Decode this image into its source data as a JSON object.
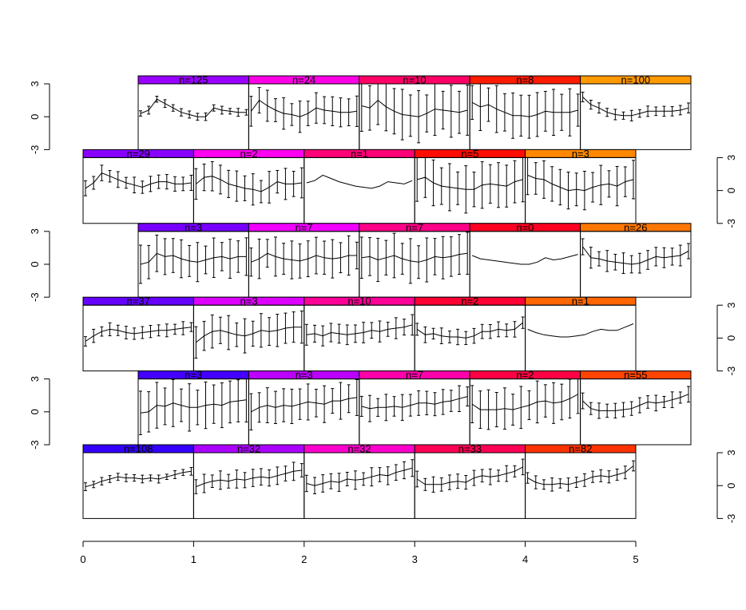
{
  "chart_data": {
    "type": "line",
    "title": "",
    "description_of_layout": "conditioning plot",
    "ylim": [
      -3,
      3
    ],
    "y_ticks": [
      "3",
      "0",
      "-3"
    ],
    "x_ticks": [
      "0",
      "1",
      "2",
      "3",
      "4",
      "5"
    ],
    "xlim": [
      0,
      5
    ],
    "rows": [
      {
        "axis": "left",
        "panels": [
          {
            "label": "n=125",
            "color": "#9900ff",
            "err": 0.3,
            "mean": [
              0.3,
              0.6,
              1.6,
              1.2,
              0.8,
              0.4,
              0.2,
              0.0,
              0.0,
              0.8,
              0.6,
              0.5,
              0.4,
              0.4
            ]
          },
          {
            "label": "n=24",
            "color": "#ff00e6",
            "err": 1.2,
            "mean": [
              0.5,
              1.5,
              1.0,
              0.6,
              0.3,
              0.2,
              0.0,
              0.3,
              0.8,
              0.6,
              0.5,
              0.4,
              0.4,
              0.5
            ]
          },
          {
            "label": "n=10",
            "color": "#ff0066",
            "err": 2.0,
            "mean": [
              1.0,
              0.8,
              1.5,
              0.9,
              0.5,
              0.2,
              0.1,
              0.0,
              0.3,
              0.7,
              0.6,
              0.5,
              0.4,
              0.6
            ]
          },
          {
            "label": "n=8",
            "color": "#ff1a00",
            "err": 1.8,
            "mean": [
              1.3,
              0.9,
              1.1,
              0.7,
              0.4,
              0.1,
              0.1,
              0.0,
              0.2,
              0.5,
              0.4,
              0.4,
              0.4,
              0.6
            ]
          },
          {
            "label": "n=100",
            "color": "#ff9900",
            "err": 0.4,
            "mean": [
              1.8,
              1.1,
              0.8,
              0.4,
              0.2,
              0.1,
              0.1,
              0.3,
              0.5,
              0.5,
              0.5,
              0.5,
              0.6,
              0.8
            ]
          }
        ]
      },
      {
        "axis": "right",
        "panels": [
          {
            "label": "n=29",
            "color": "#8800ff",
            "err": 0.6,
            "mean": [
              0.2,
              0.7,
              1.6,
              1.3,
              1.0,
              0.7,
              0.5,
              0.3,
              0.6,
              0.8,
              0.8,
              0.6,
              0.6,
              0.7
            ]
          },
          {
            "label": "n=2",
            "color": "#ff00f0",
            "err": 1.2,
            "mean": [
              0.6,
              1.2,
              1.3,
              1.0,
              0.6,
              0.4,
              0.2,
              0.1,
              -0.1,
              0.3,
              0.8,
              0.6,
              0.6,
              0.7
            ]
          },
          {
            "label": "n=1",
            "color": "#ff0077",
            "err": 0,
            "mean": [
              0.7,
              0.9,
              1.4,
              1.1,
              0.8,
              0.6,
              0.4,
              0.3,
              0.2,
              0.4,
              0.8,
              0.7,
              0.6,
              0.9
            ]
          },
          {
            "label": "n=5",
            "color": "#ff0d00",
            "err": 1.8,
            "mean": [
              1.0,
              1.2,
              0.7,
              0.4,
              0.3,
              0.2,
              0.1,
              0.1,
              0.5,
              0.6,
              0.5,
              0.4,
              0.8,
              1.0
            ]
          },
          {
            "label": "n=3",
            "color": "#ff8800",
            "err": 1.5,
            "mean": [
              1.4,
              1.1,
              1.0,
              0.6,
              0.3,
              0.0,
              0.1,
              0.0,
              0.3,
              0.5,
              0.6,
              0.4,
              0.8,
              1.0
            ]
          }
        ]
      },
      {
        "axis": "left",
        "panels": [
          {
            "label": "n=3",
            "color": "#7700ff",
            "err": 1.5,
            "mean": [
              0.0,
              0.2,
              1.0,
              0.7,
              0.8,
              0.5,
              0.3,
              0.2,
              0.4,
              0.6,
              0.7,
              0.5,
              0.7,
              0.7
            ]
          },
          {
            "label": "n=7",
            "color": "#f000ff",
            "err": 1.5,
            "mean": [
              0.2,
              0.5,
              1.0,
              0.7,
              0.5,
              0.4,
              0.3,
              0.5,
              0.8,
              0.6,
              0.5,
              0.6,
              0.8,
              0.8
            ]
          },
          {
            "label": "n=7",
            "color": "#ff0088",
            "err": 1.7,
            "mean": [
              0.6,
              0.7,
              0.4,
              0.6,
              0.8,
              0.5,
              0.3,
              0.2,
              0.4,
              0.7,
              0.6,
              0.7,
              0.9,
              1.0
            ]
          },
          {
            "label": "n=0",
            "color": "#ff0022",
            "err": 0,
            "mean": [
              0.8,
              0.5,
              0.4,
              0.3,
              0.2,
              0.1,
              0.0,
              0.0,
              0.2,
              0.6,
              0.4,
              0.5,
              0.7,
              0.9
            ]
          },
          {
            "label": "n=26",
            "color": "#ff7700",
            "err": 0.8,
            "mean": [
              1.6,
              0.6,
              0.5,
              0.3,
              0.2,
              0.1,
              0.0,
              0.1,
              0.4,
              0.7,
              0.6,
              0.7,
              0.8,
              1.2
            ]
          }
        ]
      },
      {
        "axis": "right",
        "panels": [
          {
            "label": "n=37",
            "color": "#6600ff",
            "err": 0.5,
            "mean": [
              -0.3,
              0.2,
              0.6,
              0.8,
              0.7,
              0.5,
              0.4,
              0.5,
              0.6,
              0.7,
              0.7,
              0.8,
              0.9,
              1.0
            ]
          },
          {
            "label": "n=3",
            "color": "#dd00ff",
            "err": 1.3,
            "mean": [
              -0.4,
              0.2,
              0.6,
              0.7,
              0.5,
              0.3,
              0.2,
              0.4,
              0.7,
              0.6,
              0.7,
              0.9,
              1.0,
              1.0
            ]
          },
          {
            "label": "n=10",
            "color": "#ff0099",
            "err": 0.8,
            "mean": [
              0.3,
              0.4,
              0.2,
              0.5,
              0.4,
              0.3,
              0.4,
              0.5,
              0.7,
              0.6,
              0.8,
              0.9,
              1.0,
              1.2
            ]
          },
          {
            "label": "n=2",
            "color": "#ff0033",
            "err": 0.6,
            "mean": [
              0.8,
              0.3,
              0.4,
              0.2,
              0.1,
              0.1,
              0.0,
              0.2,
              0.6,
              0.6,
              0.8,
              0.7,
              0.8,
              1.4
            ]
          },
          {
            "label": "n=1",
            "color": "#ff6600",
            "err": 0,
            "mean": [
              0.8,
              0.5,
              0.3,
              0.2,
              0.1,
              0.1,
              0.2,
              0.3,
              0.6,
              0.8,
              0.7,
              0.7,
              1.0,
              1.3
            ]
          }
        ]
      },
      {
        "axis": "left",
        "panels": [
          {
            "label": "n=3",
            "color": "#4400ff",
            "err": 1.8,
            "mean": [
              -0.1,
              0.0,
              0.6,
              0.5,
              0.8,
              0.6,
              0.4,
              0.4,
              0.6,
              0.7,
              0.6,
              0.9,
              1.0,
              1.1
            ]
          },
          {
            "label": "n=3",
            "color": "#bb00ff",
            "err": 1.4,
            "mean": [
              0.0,
              0.4,
              0.6,
              0.4,
              0.6,
              0.5,
              0.7,
              0.9,
              0.8,
              0.7,
              1.0,
              1.0,
              1.2,
              1.3
            ]
          },
          {
            "label": "n=7",
            "color": "#ff00aa",
            "err": 1.0,
            "mean": [
              0.5,
              0.3,
              0.4,
              0.4,
              0.5,
              0.4,
              0.6,
              0.8,
              0.8,
              0.7,
              0.9,
              1.0,
              1.2,
              1.4
            ]
          },
          {
            "label": "n=2",
            "color": "#ff0044",
            "err": 1.6,
            "mean": [
              0.7,
              0.2,
              0.2,
              0.2,
              0.3,
              0.2,
              0.4,
              0.6,
              0.9,
              1.0,
              0.8,
              0.9,
              1.2,
              1.6
            ]
          },
          {
            "label": "n=55",
            "color": "#ff4400",
            "err": 0.6,
            "mean": [
              1.0,
              0.3,
              0.1,
              0.1,
              0.1,
              0.2,
              0.3,
              0.6,
              0.9,
              0.8,
              0.9,
              1.1,
              1.3,
              1.6
            ]
          }
        ]
      },
      {
        "axis": "right",
        "panels": [
          {
            "label": "n=108",
            "color": "#3300ff",
            "err": 0.3,
            "mean": [
              -0.1,
              0.1,
              0.4,
              0.6,
              0.8,
              0.7,
              0.7,
              0.6,
              0.7,
              0.6,
              0.8,
              1.0,
              1.2,
              1.3
            ]
          },
          {
            "label": "n=32",
            "color": "#aa00ff",
            "err": 0.7,
            "mean": [
              -0.1,
              0.2,
              0.4,
              0.5,
              0.4,
              0.6,
              0.5,
              0.7,
              0.8,
              0.7,
              0.9,
              1.1,
              1.3,
              1.4
            ]
          },
          {
            "label": "n=32",
            "color": "#ff00cc",
            "err": 0.7,
            "mean": [
              0.2,
              0.0,
              0.2,
              0.4,
              0.3,
              0.6,
              0.5,
              0.6,
              0.8,
              1.0,
              0.9,
              1.2,
              1.4,
              1.6
            ]
          },
          {
            "label": "n=33",
            "color": "#ff0055",
            "err": 0.6,
            "mean": [
              0.6,
              0.1,
              0.1,
              0.1,
              0.3,
              0.4,
              0.3,
              0.7,
              0.9,
              0.8,
              0.9,
              1.1,
              1.3,
              1.7
            ]
          },
          {
            "label": "n=82",
            "color": "#ff3300",
            "err": 0.5,
            "mean": [
              0.7,
              0.3,
              0.1,
              0.1,
              0.2,
              0.1,
              0.3,
              0.5,
              0.8,
              0.9,
              0.8,
              1.0,
              1.2,
              1.8
            ]
          }
        ]
      }
    ]
  }
}
